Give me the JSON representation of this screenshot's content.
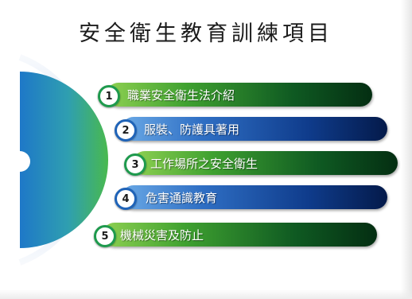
{
  "title": "安全衛生教育訓練項目",
  "items": [
    {
      "number": "1",
      "label": "職業安全衛生法介紹",
      "color": "#2e8b3a"
    },
    {
      "number": "2",
      "label": "服裝、防護具著用",
      "color": "#1f5fb3"
    },
    {
      "number": "3",
      "label": "工作場所之安全衛生",
      "color": "#2e8b3a"
    },
    {
      "number": "4",
      "label": "危害通識教育",
      "color": "#1f5fb3"
    },
    {
      "number": "5",
      "label": "機械災害及防止",
      "color": "#2e8b3a"
    }
  ]
}
